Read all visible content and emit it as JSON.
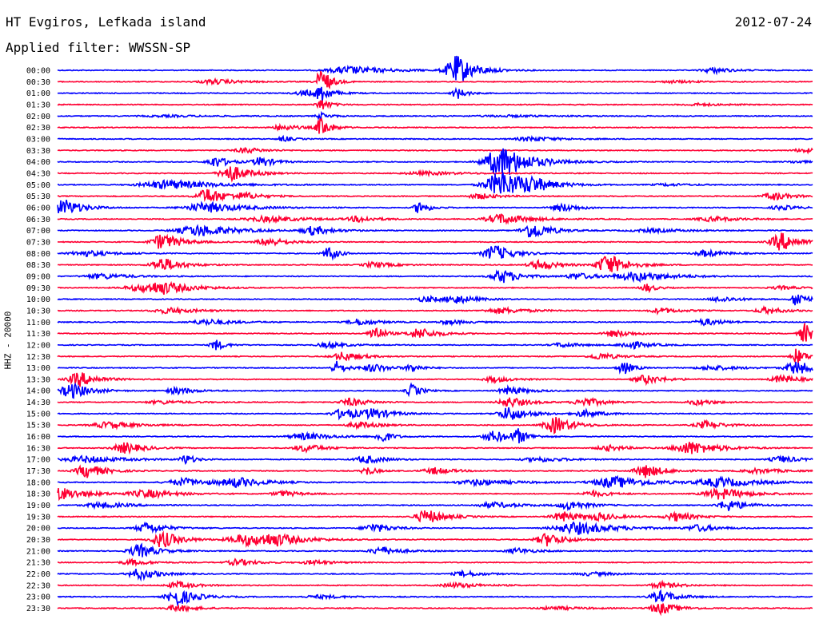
{
  "header": {
    "station": "HT Evgiros, Lefkada island",
    "date": "2012-07-24",
    "filter": "Applied filter: WWSSN-SP"
  },
  "chart_data": {
    "type": "line",
    "subtype": "helicorder",
    "ylabel": "HHZ - 20000",
    "colors": [
      "#0000ff",
      "#ff0033"
    ],
    "rows": [
      {
        "label": "00:00",
        "bursts": [
          [
            0.53,
            2.6,
            0.02
          ],
          [
            0.39,
            0.7,
            0.04
          ],
          [
            0.87,
            0.5,
            0.02
          ]
        ]
      },
      {
        "label": "00:30",
        "bursts": [
          [
            0.21,
            0.4,
            0.03
          ],
          [
            0.35,
            2.5,
            0.01
          ],
          [
            0.82,
            0.2,
            0.03
          ]
        ]
      },
      {
        "label": "01:00",
        "bursts": [
          [
            0.33,
            0.5,
            0.02
          ],
          [
            0.35,
            1.5,
            0.01
          ],
          [
            0.53,
            1.0,
            0.01
          ]
        ]
      },
      {
        "label": "01:30",
        "bursts": [
          [
            0.35,
            1.0,
            0.01
          ],
          [
            0.85,
            0.2,
            0.03
          ]
        ]
      },
      {
        "label": "02:00",
        "bursts": [
          [
            0.35,
            0.6,
            0.01
          ],
          [
            0.15,
            0.15,
            0.05
          ],
          [
            0.6,
            0.15,
            0.06
          ]
        ]
      },
      {
        "label": "02:30",
        "bursts": [
          [
            0.3,
            0.5,
            0.02
          ],
          [
            0.35,
            1.8,
            0.01
          ]
        ]
      },
      {
        "label": "03:00",
        "bursts": [
          [
            0.3,
            0.5,
            0.01
          ],
          [
            0.63,
            0.4,
            0.03
          ]
        ]
      },
      {
        "label": "03:30",
        "bursts": [
          [
            0.25,
            0.5,
            0.02
          ],
          [
            0.99,
            0.35,
            0.02
          ]
        ]
      },
      {
        "label": "04:00",
        "bursts": [
          [
            0.59,
            3.0,
            0.03
          ],
          [
            0.21,
            1.0,
            0.015
          ],
          [
            0.27,
            0.9,
            0.015
          ],
          [
            0.98,
            0.2,
            0.02
          ]
        ]
      },
      {
        "label": "04:30",
        "bursts": [
          [
            0.23,
            1.5,
            0.02
          ],
          [
            0.49,
            0.3,
            0.04
          ]
        ]
      },
      {
        "label": "05:00",
        "bursts": [
          [
            0.59,
            2.5,
            0.03
          ],
          [
            0.15,
            0.8,
            0.05
          ],
          [
            0.63,
            0.8,
            0.02
          ],
          [
            0.81,
            0.2,
            0.03
          ]
        ]
      },
      {
        "label": "05:30",
        "bursts": [
          [
            0.2,
            1.4,
            0.02
          ],
          [
            0.25,
            0.5,
            0.02
          ],
          [
            0.56,
            0.5,
            0.02
          ],
          [
            0.95,
            0.7,
            0.02
          ]
        ]
      },
      {
        "label": "06:00",
        "bursts": [
          [
            0.01,
            1.5,
            0.02
          ],
          [
            0.2,
            0.9,
            0.04
          ],
          [
            0.48,
            1.2,
            0.01
          ],
          [
            0.67,
            0.7,
            0.02
          ],
          [
            0.96,
            0.4,
            0.02
          ]
        ]
      },
      {
        "label": "06:30",
        "bursts": [
          [
            0.28,
            0.5,
            0.04
          ],
          [
            0.4,
            0.5,
            0.02
          ],
          [
            0.59,
            0.9,
            0.03
          ],
          [
            0.87,
            0.4,
            0.03
          ]
        ]
      },
      {
        "label": "07:00",
        "bursts": [
          [
            0.19,
            1.0,
            0.04
          ],
          [
            0.34,
            0.8,
            0.02
          ],
          [
            0.63,
            1.5,
            0.02
          ],
          [
            0.79,
            0.3,
            0.04
          ]
        ]
      },
      {
        "label": "07:30",
        "bursts": [
          [
            0.14,
            1.5,
            0.02
          ],
          [
            0.28,
            0.8,
            0.02
          ],
          [
            0.96,
            1.6,
            0.02
          ]
        ]
      },
      {
        "label": "08:00",
        "bursts": [
          [
            0.04,
            0.5,
            0.03
          ],
          [
            0.36,
            1.3,
            0.01
          ],
          [
            0.58,
            1.5,
            0.02
          ],
          [
            0.86,
            0.6,
            0.02
          ]
        ]
      },
      {
        "label": "08:30",
        "bursts": [
          [
            0.14,
            1.3,
            0.02
          ],
          [
            0.42,
            0.5,
            0.02
          ],
          [
            0.64,
            0.9,
            0.02
          ],
          [
            0.73,
            1.9,
            0.02
          ]
        ]
      },
      {
        "label": "09:00",
        "bursts": [
          [
            0.06,
            0.5,
            0.03
          ],
          [
            0.59,
            1.2,
            0.02
          ],
          [
            0.69,
            0.6,
            0.02
          ],
          [
            0.77,
            0.8,
            0.04
          ]
        ]
      },
      {
        "label": "09:30",
        "bursts": [
          [
            0.14,
            1.0,
            0.03
          ],
          [
            0.11,
            0.5,
            0.03
          ],
          [
            0.78,
            0.8,
            0.01
          ],
          [
            0.96,
            0.3,
            0.02
          ]
        ]
      },
      {
        "label": "10:00",
        "bursts": [
          [
            0.49,
            0.5,
            0.02
          ],
          [
            0.53,
            0.7,
            0.02
          ],
          [
            0.88,
            0.5,
            0.02
          ],
          [
            0.98,
            1.5,
            0.01
          ]
        ]
      },
      {
        "label": "10:30",
        "bursts": [
          [
            0.15,
            0.5,
            0.03
          ],
          [
            0.59,
            0.5,
            0.03
          ],
          [
            0.8,
            0.5,
            0.02
          ],
          [
            0.94,
            0.6,
            0.02
          ]
        ]
      },
      {
        "label": "11:00",
        "bursts": [
          [
            0.2,
            0.5,
            0.03
          ],
          [
            0.4,
            0.6,
            0.02
          ],
          [
            0.86,
            0.6,
            0.02
          ],
          [
            0.52,
            0.4,
            0.02
          ]
        ]
      },
      {
        "label": "11:30",
        "bursts": [
          [
            0.42,
            1.6,
            0.01
          ],
          [
            0.48,
            1.0,
            0.02
          ],
          [
            0.74,
            0.6,
            0.02
          ],
          [
            0.99,
            1.8,
            0.01
          ]
        ]
      },
      {
        "label": "12:00",
        "bursts": [
          [
            0.21,
            1.0,
            0.01
          ],
          [
            0.36,
            0.5,
            0.02
          ],
          [
            0.67,
            0.4,
            0.02
          ],
          [
            0.76,
            0.7,
            0.02
          ]
        ]
      },
      {
        "label": "12:30",
        "bursts": [
          [
            0.38,
            0.8,
            0.02
          ],
          [
            0.72,
            0.6,
            0.02
          ],
          [
            0.98,
            1.5,
            0.01
          ]
        ]
      },
      {
        "label": "13:00",
        "bursts": [
          [
            0.37,
            1.2,
            0.01
          ],
          [
            0.42,
            0.7,
            0.02
          ],
          [
            0.47,
            0.7,
            0.01
          ],
          [
            0.75,
            1.3,
            0.01
          ],
          [
            0.87,
            0.4,
            0.03
          ],
          [
            0.98,
            1.2,
            0.02
          ]
        ]
      },
      {
        "label": "13:30",
        "bursts": [
          [
            0.03,
            1.3,
            0.02
          ],
          [
            0.58,
            0.5,
            0.02
          ],
          [
            0.78,
            0.8,
            0.02
          ],
          [
            0.96,
            0.7,
            0.02
          ]
        ]
      },
      {
        "label": "14:00",
        "bursts": [
          [
            0.02,
            1.4,
            0.02
          ],
          [
            0.16,
            0.6,
            0.02
          ],
          [
            0.47,
            1.2,
            0.01
          ],
          [
            0.6,
            0.7,
            0.02
          ]
        ]
      },
      {
        "label": "14:30",
        "bursts": [
          [
            0.14,
            0.3,
            0.03
          ],
          [
            0.39,
            0.7,
            0.02
          ],
          [
            0.6,
            0.9,
            0.02
          ],
          [
            0.7,
            0.8,
            0.02
          ],
          [
            0.85,
            0.5,
            0.02
          ]
        ]
      },
      {
        "label": "15:00",
        "bursts": [
          [
            0.38,
            1.0,
            0.02
          ],
          [
            0.42,
            0.8,
            0.02
          ],
          [
            0.6,
            1.3,
            0.02
          ],
          [
            0.7,
            0.6,
            0.02
          ]
        ]
      },
      {
        "label": "15:30",
        "bursts": [
          [
            0.07,
            0.6,
            0.03
          ],
          [
            0.4,
            0.6,
            0.02
          ],
          [
            0.66,
            1.5,
            0.02
          ],
          [
            0.86,
            0.7,
            0.02
          ]
        ]
      },
      {
        "label": "16:00",
        "bursts": [
          [
            0.33,
            0.6,
            0.03
          ],
          [
            0.43,
            1.2,
            0.01
          ],
          [
            0.58,
            1.0,
            0.02
          ],
          [
            0.61,
            1.2,
            0.01
          ]
        ]
      },
      {
        "label": "16:30",
        "bursts": [
          [
            0.09,
            1.0,
            0.02
          ],
          [
            0.33,
            0.7,
            0.02
          ],
          [
            0.73,
            0.5,
            0.02
          ],
          [
            0.84,
            1.2,
            0.03
          ]
        ]
      },
      {
        "label": "17:00",
        "bursts": [
          [
            0.04,
            0.6,
            0.04
          ],
          [
            0.17,
            0.9,
            0.01
          ],
          [
            0.41,
            0.7,
            0.02
          ],
          [
            0.64,
            0.4,
            0.03
          ],
          [
            0.96,
            0.6,
            0.02
          ]
        ]
      },
      {
        "label": "17:30",
        "bursts": [
          [
            0.04,
            1.2,
            0.02
          ],
          [
            0.41,
            0.8,
            0.01
          ],
          [
            0.5,
            0.6,
            0.02
          ],
          [
            0.78,
            1.2,
            0.02
          ],
          [
            0.93,
            0.4,
            0.03
          ]
        ]
      },
      {
        "label": "18:00",
        "bursts": [
          [
            0.17,
            0.7,
            0.03
          ],
          [
            0.24,
            0.8,
            0.03
          ],
          [
            0.56,
            0.5,
            0.04
          ],
          [
            0.74,
            1.0,
            0.04
          ],
          [
            0.88,
            0.8,
            0.04
          ]
        ]
      },
      {
        "label": "18:30",
        "bursts": [
          [
            0.0,
            1.3,
            0.03
          ],
          [
            0.12,
            0.7,
            0.03
          ],
          [
            0.3,
            0.5,
            0.02
          ],
          [
            0.71,
            0.5,
            0.02
          ],
          [
            0.88,
            1.0,
            0.03
          ]
        ]
      },
      {
        "label": "19:00",
        "bursts": [
          [
            0.06,
            0.5,
            0.03
          ],
          [
            0.58,
            0.5,
            0.03
          ],
          [
            0.68,
            0.8,
            0.02
          ],
          [
            0.89,
            1.0,
            0.02
          ]
        ]
      },
      {
        "label": "19:30",
        "bursts": [
          [
            0.49,
            1.3,
            0.02
          ],
          [
            0.67,
            0.9,
            0.02
          ],
          [
            0.72,
            0.6,
            0.02
          ],
          [
            0.82,
            0.8,
            0.02
          ]
        ]
      },
      {
        "label": "20:00",
        "bursts": [
          [
            0.12,
            1.0,
            0.02
          ],
          [
            0.42,
            0.8,
            0.02
          ],
          [
            0.69,
            1.1,
            0.04
          ],
          [
            0.85,
            0.6,
            0.02
          ]
        ]
      },
      {
        "label": "20:30",
        "bursts": [
          [
            0.14,
            1.5,
            0.02
          ],
          [
            0.25,
            1.0,
            0.03
          ],
          [
            0.29,
            0.9,
            0.03
          ],
          [
            0.65,
            1.2,
            0.02
          ]
        ]
      },
      {
        "label": "21:00",
        "bursts": [
          [
            0.11,
            1.2,
            0.02
          ],
          [
            0.43,
            0.8,
            0.02
          ],
          [
            0.61,
            0.5,
            0.02
          ]
        ]
      },
      {
        "label": "21:30",
        "bursts": [
          [
            0.1,
            0.5,
            0.02
          ],
          [
            0.24,
            0.6,
            0.02
          ],
          [
            0.34,
            0.4,
            0.02
          ]
        ]
      },
      {
        "label": "22:00",
        "bursts": [
          [
            0.11,
            1.0,
            0.02
          ],
          [
            0.54,
            0.5,
            0.02
          ],
          [
            0.71,
            0.3,
            0.03
          ]
        ]
      },
      {
        "label": "22:30",
        "bursts": [
          [
            0.16,
            0.6,
            0.02
          ],
          [
            0.53,
            0.4,
            0.03
          ],
          [
            0.8,
            0.6,
            0.02
          ]
        ]
      },
      {
        "label": "23:00",
        "bursts": [
          [
            0.16,
            1.5,
            0.02
          ],
          [
            0.35,
            0.3,
            0.03
          ],
          [
            0.8,
            1.0,
            0.02
          ]
        ]
      },
      {
        "label": "23:30",
        "bursts": [
          [
            0.16,
            0.6,
            0.02
          ],
          [
            0.66,
            0.3,
            0.03
          ],
          [
            0.8,
            1.0,
            0.02
          ]
        ]
      }
    ]
  }
}
